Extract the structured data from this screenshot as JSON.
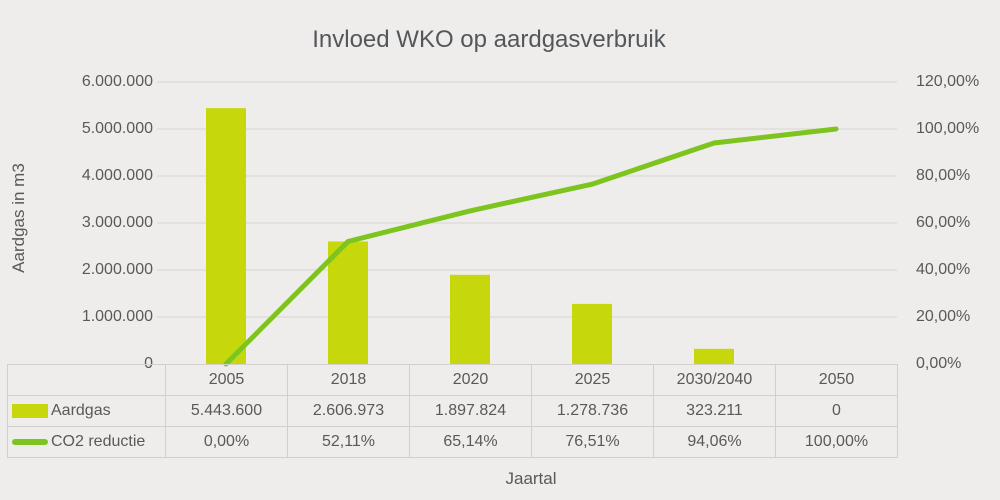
{
  "chart_data": {
    "type": "combo-bar-line",
    "title": "Invloed WKO op aardgasverbruik",
    "xlabel": "Jaartal",
    "ylabel_left": "Aardgas in m3",
    "categories": [
      "2005",
      "2018",
      "2020",
      "2025",
      "2030/2040",
      "2050"
    ],
    "series": [
      {
        "name": "Aardgas",
        "type": "bar",
        "axis": "left",
        "values": [
          5443600,
          2606973,
          1897824,
          1278736,
          323211,
          0
        ],
        "labels": [
          "5.443.600",
          "2.606.973",
          "1.897.824",
          "1.278.736",
          "323.211",
          "0"
        ],
        "color": "#c6d70b"
      },
      {
        "name": "CO2 reductie",
        "type": "line",
        "axis": "right",
        "values": [
          0,
          52.11,
          65.14,
          76.51,
          94.06,
          100
        ],
        "labels": [
          "0,00%",
          "52,11%",
          "65,14%",
          "76,51%",
          "94,06%",
          "100,00%"
        ],
        "color": "#7dc41f"
      }
    ],
    "left_axis": {
      "min": 0,
      "max": 6000000,
      "step": 1000000,
      "tick_labels_top_to_bottom": [
        "6.000.000",
        "5.000.000",
        "4.000.000",
        "3.000.000",
        "2.000.000",
        "1.000.000",
        "0"
      ]
    },
    "right_axis": {
      "min": 0,
      "max": 120,
      "step": 20,
      "tick_labels_top_to_bottom": [
        "120,00%",
        "100,00%",
        "80,00%",
        "60,00%",
        "40,00%",
        "20,00%",
        "0,00%"
      ]
    },
    "grid": true,
    "legend_position": "table-left"
  },
  "colors": {
    "background": "#efedeb",
    "text": "#595959",
    "gridline": "#dcdad7",
    "table_border": "#d2cfcc"
  }
}
